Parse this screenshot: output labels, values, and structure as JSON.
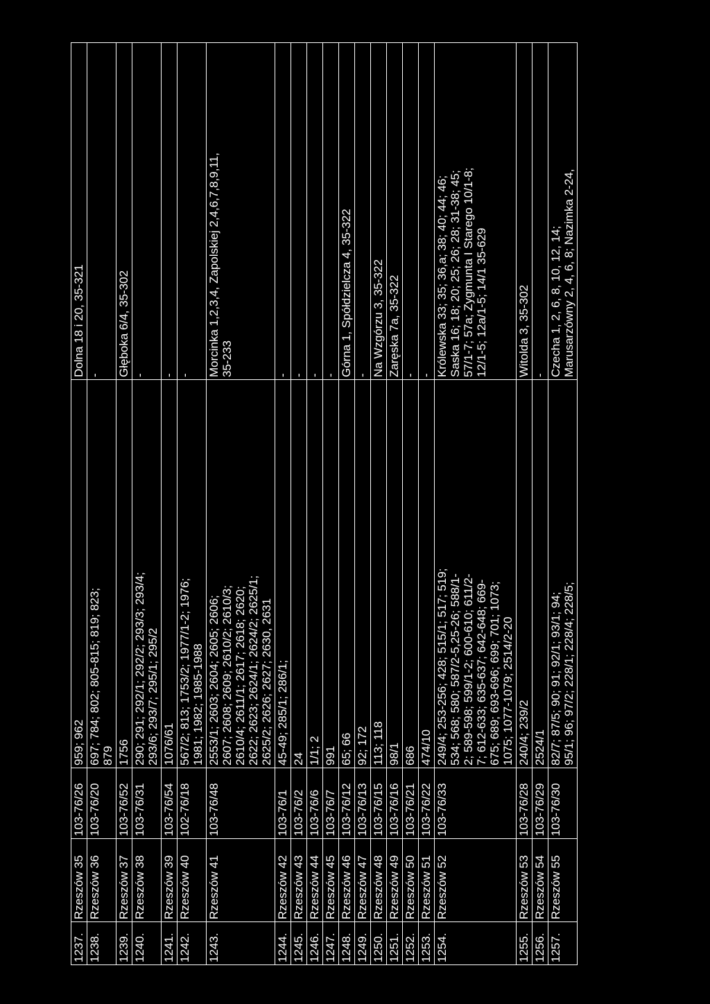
{
  "rows": [
    {
      "no": "1237.",
      "name": "Rzeszów 35",
      "code": "103-76/26",
      "plots": "959; 962",
      "address": "Dolna 18 i 20, 35-321"
    },
    {
      "no": "1238.",
      "name": "Rzeszów 36",
      "code": "103-76/20",
      "plots": "697; 784; 802; 805-815; 819; 823;\n879",
      "address": "-"
    },
    {
      "no": "1239.",
      "name": "Rzeszów 37",
      "code": "103-76/52",
      "plots": "1756",
      "address": "Głęboka 6/4, 35-302"
    },
    {
      "no": "1240.",
      "name": "Rzeszów 38",
      "code": "103-76/31",
      "plots": "290; 291; 292/1; 292/2; 293/3; 293/4;\n293/6; 293/7; 295/1; 295/2",
      "address": "-"
    },
    {
      "no": "1241.",
      "name": "Rzeszów 39",
      "code": "103-76/54",
      "plots": "1076/61",
      "address": "-"
    },
    {
      "no": "1242.",
      "name": "Rzeszów 40",
      "code": "102-76/18",
      "plots": "567/2; 813; 1753/2; 1977/1-2; 1976;\n1981; 1982; 1985-1988",
      "address": "-"
    },
    {
      "no": "1243.",
      "name": "Rzeszów 41",
      "code": "103-76/48",
      "plots": "2553/1; 2603; 2604; 2605; 2606;\n2607; 2608; 2609; 2610/2; 2610/3;\n2610/4; 2611/1; 2617; 2618; 2620;\n2622; 2623; 2624/1; 2624/2; 2625/1;\n2625/2; 2626; 2627; 2630, 2631",
      "address": "Morcinka 1,2,3,4, Zapolskiej 2,4,6,7,8,9,11,\n35-233"
    },
    {
      "no": "1244.",
      "name": "Rzeszów 42",
      "code": "103-76/1",
      "plots": "45-49; 285/1; 286/1;",
      "address": "-"
    },
    {
      "no": "1245.",
      "name": "Rzeszów 43",
      "code": "103-76/2",
      "plots": "24",
      "address": "-"
    },
    {
      "no": "1246.",
      "name": "Rzeszów 44",
      "code": "103-76/6",
      "plots": "1/1; 2",
      "address": "-"
    },
    {
      "no": "1247.",
      "name": "Rzeszów 45",
      "code": "103-76/7",
      "plots": "991",
      "address": "-"
    },
    {
      "no": "1248.",
      "name": "Rzeszów 46",
      "code": "103-76/12",
      "plots": "65; 66",
      "address": "Górna 1, Spółdzielcza 4, 35-322"
    },
    {
      "no": "1249.",
      "name": "Rzeszów 47",
      "code": "103-76/13",
      "plots": "92; 172",
      "address": "-"
    },
    {
      "no": "1250.",
      "name": "Rzeszów 48",
      "code": "103-76/15",
      "plots": "113; 118",
      "address": "Na Wzgórzu 3, 35-322"
    },
    {
      "no": "1251.",
      "name": "Rzeszów 49",
      "code": "103-76/16",
      "plots": "98/1",
      "address": "Zaręska 7a, 35-322"
    },
    {
      "no": "1252.",
      "name": "Rzeszów 50",
      "code": "103-76/21",
      "plots": "686",
      "address": "-"
    },
    {
      "no": "1253.",
      "name": "Rzeszów 51",
      "code": "103-76/22",
      "plots": "474/10",
      "address": "-"
    },
    {
      "no": "1254.",
      "name": "Rzeszów 52",
      "code": "103-76/33",
      "plots": "249/4; 253-256; 428; 515/1; 517; 519;\n534; 568; 580; 587/2-5,25-26; 588/1-\n2; 589-598; 599/1-2; 600-610; 611/2-\n7; 612-633; 635-637; 642-648; 669-\n675; 689; 693-696; 699; 701; 1073;\n1075; 1077-1079; 2514/2-20",
      "address": "Królewska 33; 35; 36,a; 38; 40; 44; 46;\nSaska 16; 18; 20; 25; 26; 28; 31-38; 45;\n57/1-7; 57a; Zygmunta I Starego 10/1-8;\n12/1-5; 12a/1-5; 14/1 35-629"
    },
    {
      "no": "1255.",
      "name": "Rzeszów 53",
      "code": "103-76/28",
      "plots": "240/4; 239/2",
      "address": "Witolda 3, 35-302"
    },
    {
      "no": "1256.",
      "name": "Rzeszów 54",
      "code": "103-76/29",
      "plots": "2524/1",
      "address": "-"
    },
    {
      "no": "1257.",
      "name": "Rzeszów 55",
      "code": "103-76/30",
      "plots": "82/7; 87/5; 90; 91; 92/1; 93/1; 94;\n95/1; 96; 97/2; 228/1; 228/4; 228/5;",
      "address": "Czecha 1, 2, 6, 8, 10, 12, 14;\nMarusarzówny 2, 4, 6, 8; Nazimka 2-24,"
    }
  ]
}
